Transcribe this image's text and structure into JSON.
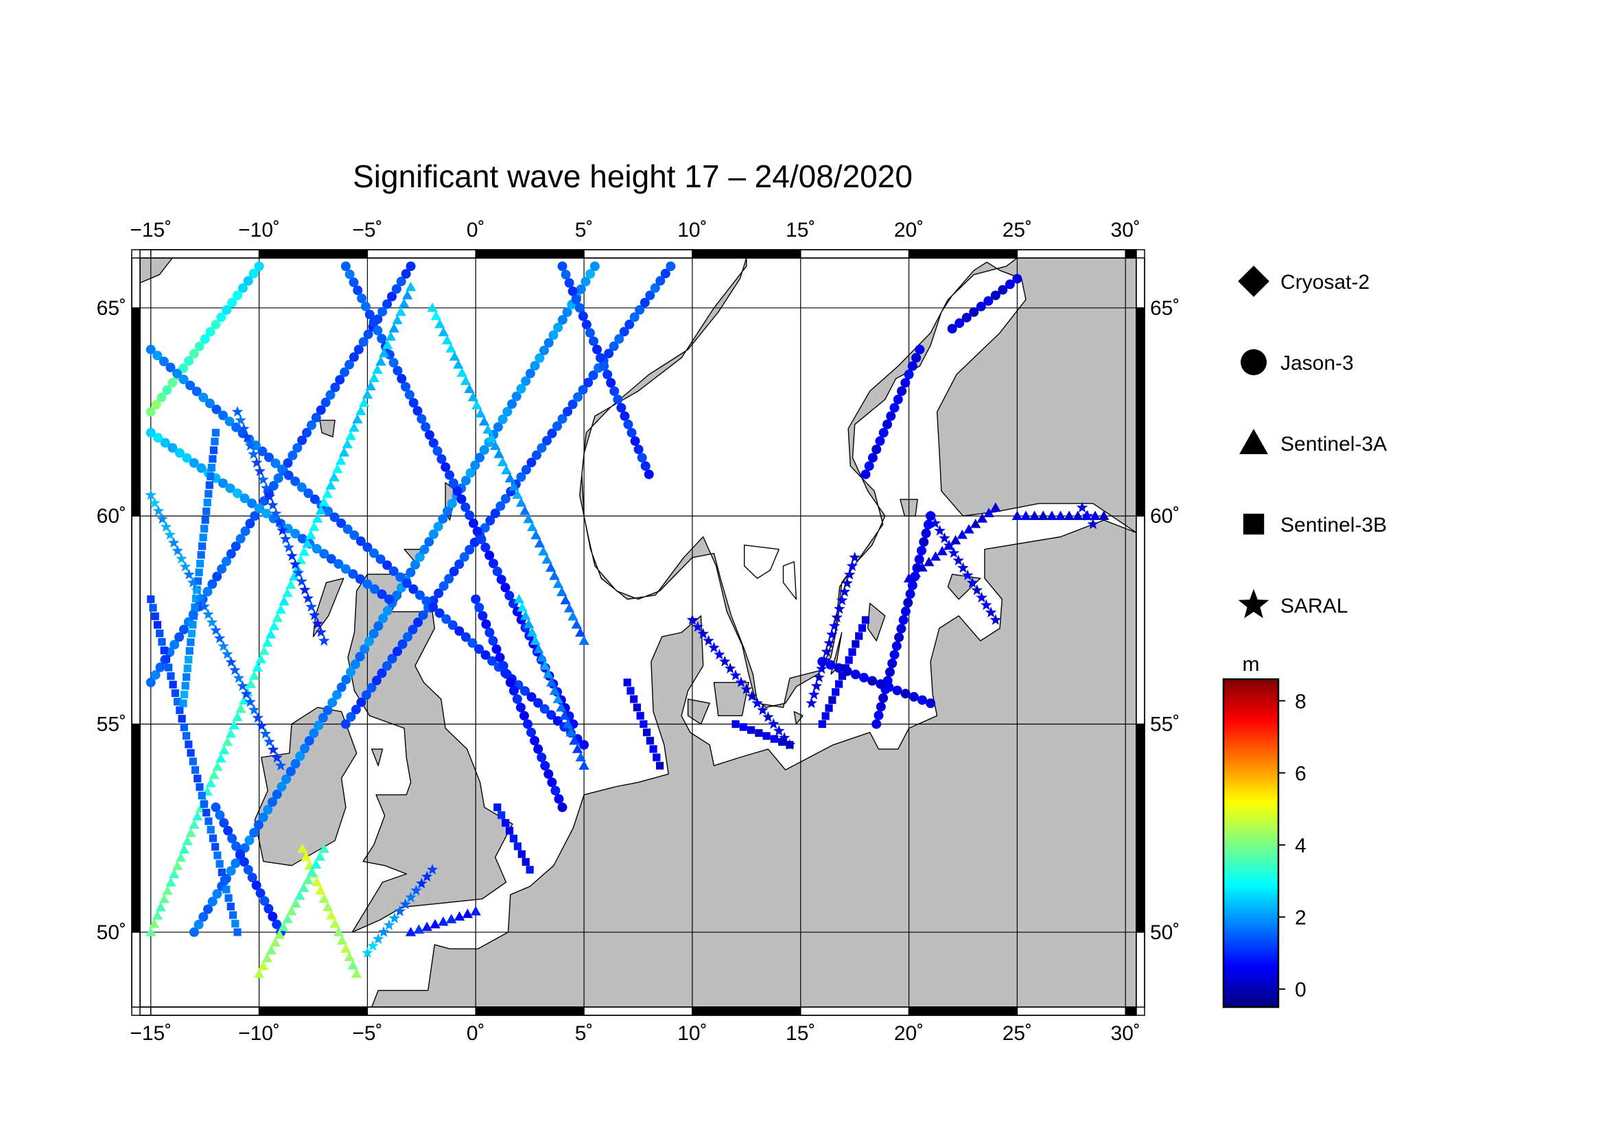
{
  "title": "Significant wave height 17 – 24/08/2020",
  "map": {
    "projection": "linear lon/lat",
    "lon_range": [
      -15.5,
      30.5
    ],
    "lat_range": [
      48.2,
      66.2
    ],
    "x_ticks": [
      {
        "value": -15,
        "label": "−15˚"
      },
      {
        "value": -10,
        "label": "−10˚"
      },
      {
        "value": -5,
        "label": "−5˚"
      },
      {
        "value": 0,
        "label": "0˚"
      },
      {
        "value": 5,
        "label": "5˚"
      },
      {
        "value": 10,
        "label": "10˚"
      },
      {
        "value": 15,
        "label": "15˚"
      },
      {
        "value": 20,
        "label": "20˚"
      },
      {
        "value": 25,
        "label": "25˚"
      },
      {
        "value": 30,
        "label": "30˚"
      }
    ],
    "y_ticks": [
      {
        "value": 50,
        "label": "50˚"
      },
      {
        "value": 55,
        "label": "55˚"
      },
      {
        "value": 60,
        "label": "60˚"
      },
      {
        "value": 65,
        "label": "65˚"
      }
    ],
    "gridlines": true,
    "land_color": "#bebebe",
    "sea_color": "#ffffff",
    "coast_color": "#000000"
  },
  "legend": {
    "placement": "right",
    "items": [
      {
        "name": "Cryosat-2",
        "symbol": "diamond"
      },
      {
        "name": "Jason-3",
        "symbol": "circle"
      },
      {
        "name": "Sentinel-3A",
        "symbol": "triangle"
      },
      {
        "name": "Sentinel-3B",
        "symbol": "square"
      },
      {
        "name": "SARAL",
        "symbol": "star"
      }
    ]
  },
  "colorbar": {
    "unit": "m",
    "min": -0.5,
    "max": 8.6,
    "ticks": [
      {
        "value": 0,
        "label": "0"
      },
      {
        "value": 2,
        "label": "2"
      },
      {
        "value": 4,
        "label": "4"
      },
      {
        "value": 6,
        "label": "6"
      },
      {
        "value": 8,
        "label": "8"
      }
    ],
    "colormap": [
      "#00007f",
      "#0000ff",
      "#007fff",
      "#00ffff",
      "#7fff7f",
      "#ffff00",
      "#ff7f00",
      "#ff0000",
      "#7f0000"
    ]
  },
  "chart_data": {
    "type": "scatter",
    "title": "Significant wave height 17 – 24/08/2020",
    "x_quantity": "longitude (°)",
    "y_quantity": "latitude (°)",
    "value_quantity": "significant wave height (m)",
    "series": [
      {
        "name": "Jason-3",
        "symbol": "circle",
        "tracks": [
          {
            "from": [
              -15.0,
              56.0
            ],
            "to": [
              -3.0,
              66.0
            ],
            "hs_from": 1.6,
            "hs_to": 1.2
          },
          {
            "from": [
              -13.0,
              50.0
            ],
            "to": [
              5.5,
              66.0
            ],
            "hs_from": 1.6,
            "hs_to": 2.0
          },
          {
            "from": [
              -6.0,
              55.0
            ],
            "to": [
              9.0,
              66.0
            ],
            "hs_from": 1.2,
            "hs_to": 1.4
          },
          {
            "from": [
              -15.0,
              62.5
            ],
            "to": [
              -10.0,
              66.0
            ],
            "hs_from": 4.0,
            "hs_to": 2.5
          },
          {
            "from": [
              -15.0,
              62.0
            ],
            "to": [
              -4.0,
              58.0
            ],
            "hs_from": 2.5,
            "hs_to": 1.3
          },
          {
            "from": [
              -15.0,
              64.0
            ],
            "to": [
              5.0,
              54.5
            ],
            "hs_from": 1.8,
            "hs_to": 0.9
          },
          {
            "from": [
              -6.0,
              66.0
            ],
            "to": [
              4.5,
              55.0
            ],
            "hs_from": 1.5,
            "hs_to": 0.6
          },
          {
            "from": [
              4.0,
              66.0
            ],
            "to": [
              8.0,
              61.0
            ],
            "hs_from": 1.3,
            "hs_to": 1.0
          },
          {
            "from": [
              -12.0,
              53.0
            ],
            "to": [
              -9.0,
              50.0
            ],
            "hs_from": 1.4,
            "hs_to": 1.0
          },
          {
            "from": [
              0.0,
              58.0
            ],
            "to": [
              4.0,
              53.0
            ],
            "hs_from": 1.0,
            "hs_to": 0.6
          },
          {
            "from": [
              18.5,
              55.0
            ],
            "to": [
              21.0,
              60.0
            ],
            "hs_from": 0.4,
            "hs_to": 0.4
          },
          {
            "from": [
              18.0,
              61.0
            ],
            "to": [
              20.5,
              64.0
            ],
            "hs_from": 0.5,
            "hs_to": 0.5
          },
          {
            "from": [
              22.0,
              64.5
            ],
            "to": [
              25.0,
              65.7
            ],
            "hs_from": 0.3,
            "hs_to": 0.3
          },
          {
            "from": [
              16.0,
              56.5
            ],
            "to": [
              21.0,
              55.5
            ],
            "hs_from": 0.4,
            "hs_to": 0.3
          }
        ]
      },
      {
        "name": "Sentinel-3A",
        "symbol": "triangle",
        "tracks": [
          {
            "from": [
              -15.0,
              50.0
            ],
            "to": [
              -3.0,
              65.5
            ],
            "hs_from": 3.8,
            "hs_to": 2.2
          },
          {
            "from": [
              -8.0,
              52.0
            ],
            "to": [
              -5.5,
              49.0
            ],
            "hs_from": 4.8,
            "hs_to": 4.2
          },
          {
            "from": [
              -10.0,
              49.0
            ],
            "to": [
              -7.0,
              52.0
            ],
            "hs_from": 4.5,
            "hs_to": 3.2
          },
          {
            "from": [
              2.0,
              58.0
            ],
            "to": [
              5.0,
              54.0
            ],
            "hs_from": 2.5,
            "hs_to": 1.2
          },
          {
            "from": [
              -2.0,
              65.0
            ],
            "to": [
              5.0,
              57.0
            ],
            "hs_from": 2.6,
            "hs_to": 1.5
          },
          {
            "from": [
              20.0,
              58.5
            ],
            "to": [
              24.0,
              60.2
            ],
            "hs_from": 0.4,
            "hs_to": 0.3
          },
          {
            "from": [
              25.0,
              60.0
            ],
            "to": [
              29.0,
              60.0
            ],
            "hs_from": 0.3,
            "hs_to": 0.3
          },
          {
            "from": [
              -3.0,
              50.0
            ],
            "to": [
              0.0,
              50.5
            ],
            "hs_from": 0.9,
            "hs_to": 0.7
          }
        ]
      },
      {
        "name": "Sentinel-3B",
        "symbol": "square",
        "tracks": [
          {
            "from": [
              -15.0,
              58.0
            ],
            "to": [
              -11.0,
              50.0
            ],
            "hs_from": 1.2,
            "hs_to": 1.6
          },
          {
            "from": [
              -13.5,
              55.5
            ],
            "to": [
              -12.0,
              62.0
            ],
            "hs_from": 2.0,
            "hs_to": 1.5
          },
          {
            "from": [
              7.0,
              56.0
            ],
            "to": [
              8.5,
              54.0
            ],
            "hs_from": 0.5,
            "hs_to": 0.4
          },
          {
            "from": [
              12.0,
              55.0
            ],
            "to": [
              14.5,
              54.5
            ],
            "hs_from": 0.4,
            "hs_to": 0.3
          },
          {
            "from": [
              16.0,
              55.0
            ],
            "to": [
              18.0,
              57.5
            ],
            "hs_from": 0.4,
            "hs_to": 0.4
          },
          {
            "from": [
              1.0,
              53.0
            ],
            "to": [
              2.5,
              51.5
            ],
            "hs_from": 0.8,
            "hs_to": 0.6
          }
        ]
      },
      {
        "name": "SARAL",
        "symbol": "star",
        "tracks": [
          {
            "from": [
              -15.0,
              60.5
            ],
            "to": [
              -9.0,
              54.0
            ],
            "hs_from": 2.2,
            "hs_to": 1.2
          },
          {
            "from": [
              -11.0,
              62.5
            ],
            "to": [
              -7.0,
              57.0
            ],
            "hs_from": 1.5,
            "hs_to": 1.0
          },
          {
            "from": [
              -5.0,
              49.5
            ],
            "to": [
              -2.0,
              51.5
            ],
            "hs_from": 2.5,
            "hs_to": 1.0
          },
          {
            "from": [
              10.0,
              57.5
            ],
            "to": [
              14.5,
              54.5
            ],
            "hs_from": 0.5,
            "hs_to": 0.3
          },
          {
            "from": [
              15.5,
              55.5
            ],
            "to": [
              17.5,
              59.0
            ],
            "hs_from": 0.4,
            "hs_to": 0.4
          },
          {
            "from": [
              21.0,
              60.0
            ],
            "to": [
              24.0,
              57.5
            ],
            "hs_from": 0.5,
            "hs_to": 0.4
          },
          {
            "from": [
              28.0,
              60.2
            ],
            "to": [
              28.5,
              59.8
            ],
            "hs_from": 0.4,
            "hs_to": 0.4
          }
        ]
      }
    ]
  }
}
